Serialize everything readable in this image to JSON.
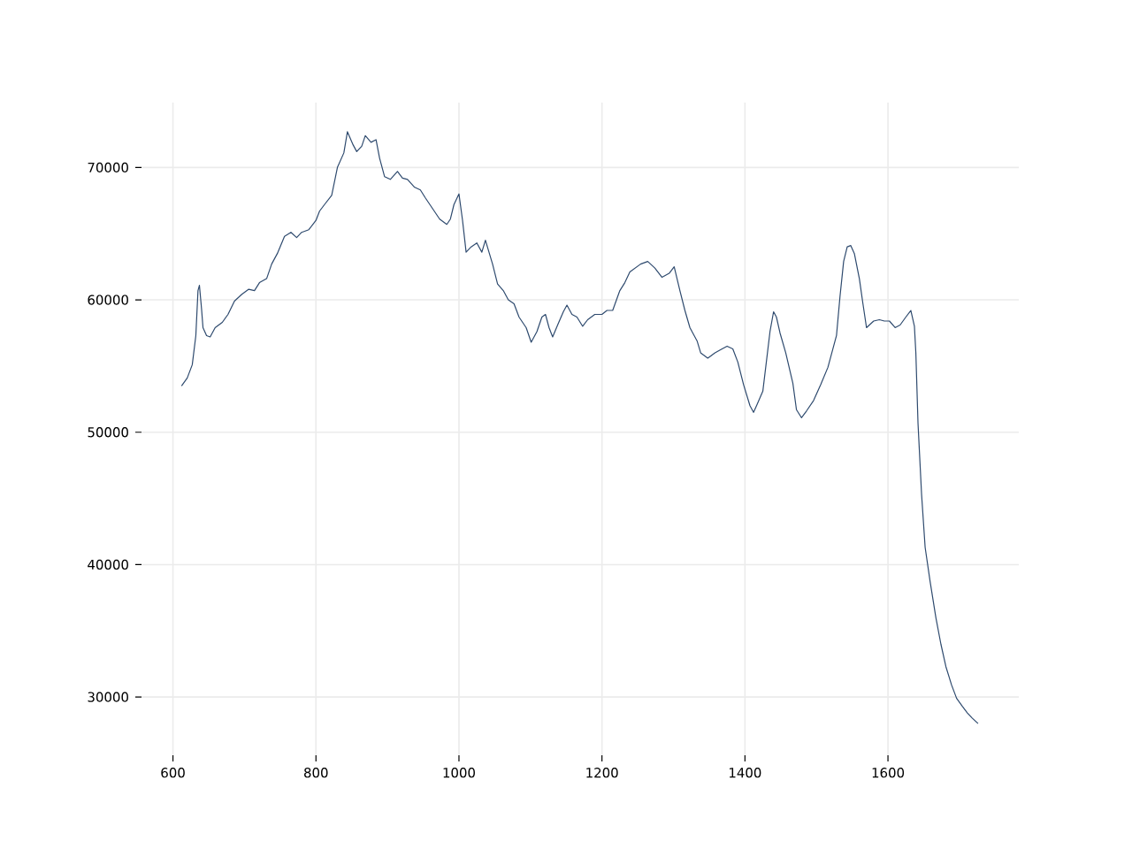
{
  "chart_data": {
    "type": "line",
    "color": "#2e4a6e",
    "x": [
      612,
      620,
      627,
      632,
      635,
      637,
      640,
      642,
      647,
      652,
      659,
      669,
      677,
      686,
      696,
      706,
      714,
      721,
      731,
      738,
      746,
      756,
      765,
      773,
      780,
      790,
      800,
      805,
      812,
      822,
      830,
      839,
      844,
      852,
      857,
      864,
      869,
      877,
      884,
      889,
      896,
      904,
      914,
      921,
      928,
      938,
      946,
      953,
      963,
      973,
      983,
      988,
      993,
      1000,
      1005,
      1010,
      1017,
      1025,
      1032,
      1037,
      1047,
      1054,
      1062,
      1069,
      1077,
      1084,
      1094,
      1101,
      1109,
      1116,
      1121,
      1126,
      1131,
      1138,
      1146,
      1151,
      1158,
      1165,
      1173,
      1180,
      1190,
      1200,
      1207,
      1215,
      1225,
      1232,
      1239,
      1254,
      1264,
      1274,
      1284,
      1294,
      1301,
      1309,
      1316,
      1323,
      1333,
      1338,
      1348,
      1358,
      1368,
      1375,
      1383,
      1390,
      1398,
      1407,
      1412,
      1417,
      1425,
      1435,
      1440,
      1444,
      1449,
      1457,
      1467,
      1472,
      1479,
      1486,
      1496,
      1506,
      1516,
      1523,
      1528,
      1533,
      1538,
      1543,
      1548,
      1553,
      1560,
      1565,
      1570,
      1580,
      1588,
      1595,
      1602,
      1610,
      1617,
      1625,
      1632,
      1637,
      1639,
      1642,
      1647,
      1652,
      1659,
      1667,
      1674,
      1681,
      1689,
      1696,
      1704,
      1711,
      1718,
      1726
    ],
    "values": [
      53500,
      54100,
      55100,
      57300,
      60700,
      61100,
      59300,
      57900,
      57300,
      57200,
      57900,
      58300,
      58900,
      59900,
      60400,
      60800,
      60700,
      61300,
      61600,
      62700,
      63500,
      64800,
      65100,
      64700,
      65100,
      65300,
      66000,
      66700,
      67200,
      67900,
      70000,
      71100,
      72700,
      71700,
      71200,
      71600,
      72400,
      71900,
      72100,
      70700,
      69300,
      69100,
      69700,
      69200,
      69100,
      68500,
      68300,
      67700,
      66900,
      66100,
      65700,
      66100,
      67200,
      68000,
      66000,
      63600,
      64000,
      64300,
      63600,
      64500,
      62700,
      61200,
      60700,
      60000,
      59700,
      58700,
      57900,
      56800,
      57600,
      58700,
      58900,
      57900,
      57200,
      58100,
      59100,
      59600,
      58900,
      58700,
      58000,
      58500,
      58900,
      58900,
      59200,
      59200,
      60700,
      61300,
      62100,
      62700,
      62900,
      62400,
      61700,
      62000,
      62500,
      60700,
      59200,
      57900,
      56900,
      56000,
      55600,
      56000,
      56300,
      56500,
      56300,
      55300,
      53600,
      52000,
      51500,
      52100,
      53100,
      57600,
      59100,
      58700,
      57500,
      56000,
      53700,
      51700,
      51100,
      51600,
      52400,
      53600,
      54900,
      56300,
      57300,
      60300,
      62900,
      64000,
      64100,
      63500,
      61600,
      59700,
      57900,
      58400,
      58500,
      58400,
      58400,
      57900,
      58100,
      58700,
      59200,
      58000,
      56000,
      50700,
      45300,
      41300,
      38700,
      36000,
      34000,
      32300,
      30900,
      29900,
      29300,
      28800,
      28400,
      28000
    ],
    "xlim": [
      556,
      1783
    ],
    "ylim": [
      25600,
      74900
    ],
    "xticks": [
      600,
      800,
      1000,
      1200,
      1400,
      1600
    ],
    "yticks": [
      30000,
      40000,
      50000,
      60000,
      70000
    ],
    "grid": true
  }
}
